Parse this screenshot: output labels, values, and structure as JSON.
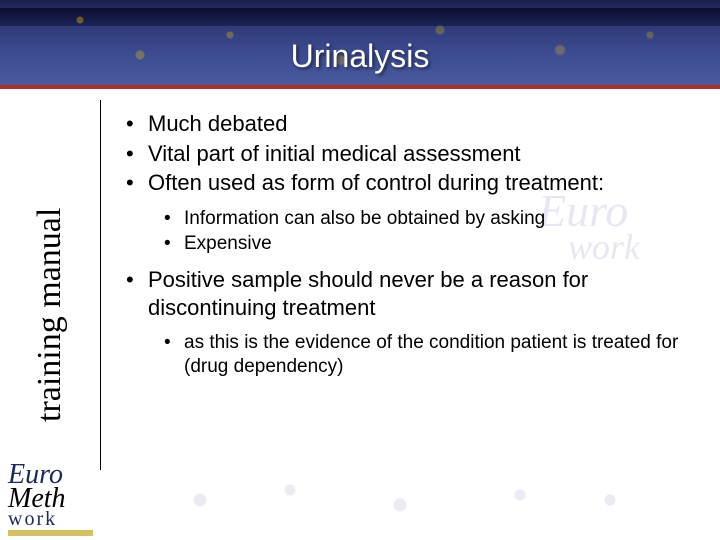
{
  "slide": {
    "title": "Urinalysis",
    "sidebar_label": "training manual",
    "bullets": {
      "b1": "Much debated",
      "b2": "Vital part of initial medical assessment",
      "b3": "Often used as form of control during treatment:",
      "b3_sub": {
        "s1": "Information can also be obtained by asking",
        "s2": "Expensive"
      },
      "b4": "Positive sample should never be a reason for discontinuing treatment",
      "b4_sub": {
        "s1": "as this is the evidence of the condition patient is treated for (drug dependency)"
      }
    },
    "logo": {
      "line1": "Euro",
      "line2": "Meth",
      "line3": "work"
    },
    "watermark": {
      "line1": "Euro",
      "line2": "work"
    }
  }
}
